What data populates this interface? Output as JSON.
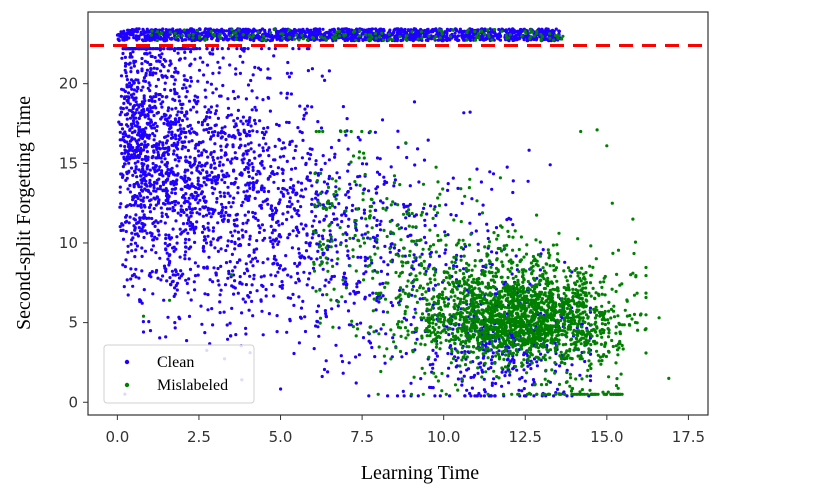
{
  "chart_data": {
    "type": "scatter",
    "xlabel": "Learning Time",
    "ylabel": "Second-split Forgetting Time",
    "xlim": [
      -0.9,
      18.1
    ],
    "ylim": [
      -0.8,
      24.5
    ],
    "xticks": [
      0.0,
      2.5,
      5.0,
      7.5,
      10.0,
      12.5,
      15.0,
      17.5
    ],
    "xtick_labels": [
      "0.0",
      "2.5",
      "5.0",
      "7.5",
      "10.0",
      "12.5",
      "15.0",
      "17.5"
    ],
    "yticks": [
      0,
      5,
      10,
      15,
      20
    ],
    "ytick_labels": [
      "0",
      "5",
      "10",
      "15",
      "20"
    ],
    "grid": false,
    "legend_position": "bottom-left",
    "threshold_line": {
      "y": 22.4,
      "color": "#ff0000",
      "style": "dashed"
    },
    "series": [
      {
        "name": "Clean",
        "color": "#1f00ff",
        "description_points": [
          {
            "x": 0.2,
            "y": 23.1
          },
          {
            "x": 3.0,
            "y": 23.2
          },
          {
            "x": 6.0,
            "y": 23.1
          },
          {
            "x": 9.0,
            "y": 23.2
          },
          {
            "x": 12.0,
            "y": 23.1
          },
          {
            "x": 0.5,
            "y": 14.0
          },
          {
            "x": 1.5,
            "y": 16.5
          },
          {
            "x": 3.0,
            "y": 12.0
          },
          {
            "x": 4.5,
            "y": 13.5
          },
          {
            "x": 5.5,
            "y": 15.0
          },
          {
            "x": 7.0,
            "y": 13.0
          },
          {
            "x": 8.5,
            "y": 11.0
          },
          {
            "x": 10.0,
            "y": 9.0
          },
          {
            "x": 12.0,
            "y": 6.0
          },
          {
            "x": 13.0,
            "y": 3.0
          }
        ]
      },
      {
        "name": "Mislabeled",
        "color": "#008000",
        "description_points": [
          {
            "x": 3.0,
            "y": 23.0
          },
          {
            "x": 8.0,
            "y": 23.1
          },
          {
            "x": 12.5,
            "y": 23.0
          },
          {
            "x": 7.0,
            "y": 10.0
          },
          {
            "x": 9.5,
            "y": 7.0
          },
          {
            "x": 11.0,
            "y": 5.0
          },
          {
            "x": 12.5,
            "y": 3.5
          },
          {
            "x": 13.5,
            "y": 4.0
          },
          {
            "x": 14.5,
            "y": 2.5
          },
          {
            "x": 15.5,
            "y": 4.5
          },
          {
            "x": 16.8,
            "y": 1.5
          },
          {
            "x": 15.8,
            "y": 11.5
          }
        ]
      }
    ]
  }
}
